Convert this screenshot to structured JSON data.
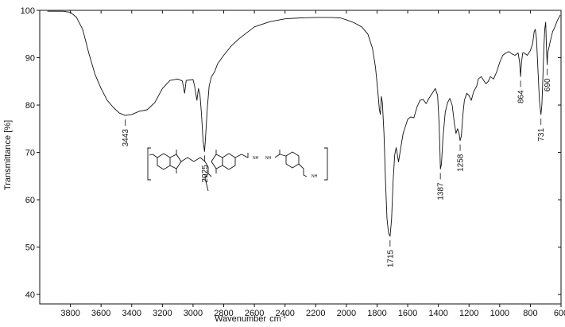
{
  "chart_data": {
    "type": "line",
    "xlabel": "Wavenumber",
    "xlabel_unit": "cm",
    "xlabel_unit_exp": "-1",
    "ylabel": "Transmittance [%]",
    "xlim": [
      4000,
      600
    ],
    "ylim": [
      38,
      100
    ],
    "x_ticks": [
      3800,
      3600,
      3400,
      3200,
      3000,
      2800,
      2600,
      2400,
      2200,
      2000,
      1800,
      1600,
      1400,
      1200,
      1000,
      800,
      600
    ],
    "y_ticks": [
      40,
      50,
      60,
      70,
      80,
      90,
      100
    ],
    "grid": false,
    "series": [
      {
        "color": "#111111",
        "points": [
          [
            3950,
            99.8
          ],
          [
            3900,
            99.8
          ],
          [
            3850,
            99.8
          ],
          [
            3800,
            99.6
          ],
          [
            3760,
            98.5
          ],
          [
            3720,
            96
          ],
          [
            3680,
            91
          ],
          [
            3640,
            86.5
          ],
          [
            3600,
            83.5
          ],
          [
            3560,
            81
          ],
          [
            3520,
            79.5
          ],
          [
            3480,
            78.3
          ],
          [
            3443,
            77.8
          ],
          [
            3400,
            78.0
          ],
          [
            3350,
            78.7
          ],
          [
            3300,
            79
          ],
          [
            3250,
            80.5
          ],
          [
            3200,
            83.5
          ],
          [
            3150,
            85.2
          ],
          [
            3100,
            85.5
          ],
          [
            3070,
            85.1
          ],
          [
            3055,
            82.5
          ],
          [
            3045,
            85.2
          ],
          [
            3020,
            85.3
          ],
          [
            3000,
            85.4
          ],
          [
            2990,
            84.0
          ],
          [
            2975,
            81.0
          ],
          [
            2965,
            83.5
          ],
          [
            2955,
            82.2
          ],
          [
            2945,
            78.0
          ],
          [
            2935,
            72.5
          ],
          [
            2925,
            70.2
          ],
          [
            2918,
            73.5
          ],
          [
            2908,
            79.0
          ],
          [
            2895,
            84.0
          ],
          [
            2880,
            86.0
          ],
          [
            2860,
            87.0
          ],
          [
            2840,
            88.7
          ],
          [
            2800,
            90.5
          ],
          [
            2750,
            92.5
          ],
          [
            2700,
            94
          ],
          [
            2600,
            96.5
          ],
          [
            2500,
            97.6
          ],
          [
            2400,
            98.2
          ],
          [
            2300,
            98.4
          ],
          [
            2200,
            98.5
          ],
          [
            2100,
            98.5
          ],
          [
            2040,
            98.4
          ],
          [
            2000,
            98.0
          ],
          [
            1950,
            97.4
          ],
          [
            1900,
            96.5
          ],
          [
            1860,
            95.0
          ],
          [
            1830,
            92.0
          ],
          [
            1810,
            88.0
          ],
          [
            1795,
            83.0
          ],
          [
            1785,
            79.0
          ],
          [
            1778,
            78.0
          ],
          [
            1772,
            81.8
          ],
          [
            1765,
            80.5
          ],
          [
            1755,
            74.0
          ],
          [
            1745,
            64.0
          ],
          [
            1735,
            56.0
          ],
          [
            1725,
            53.0
          ],
          [
            1715,
            52.3
          ],
          [
            1705,
            56.0
          ],
          [
            1695,
            64.0
          ],
          [
            1685,
            69.5
          ],
          [
            1675,
            71.0
          ],
          [
            1660,
            68.0
          ],
          [
            1650,
            70.0
          ],
          [
            1630,
            74.0
          ],
          [
            1600,
            77.0
          ],
          [
            1580,
            77.5
          ],
          [
            1560,
            77.3
          ],
          [
            1540,
            79.5
          ],
          [
            1520,
            81.0
          ],
          [
            1500,
            81.2
          ],
          [
            1480,
            80.3
          ],
          [
            1460,
            81.5
          ],
          [
            1440,
            82.5
          ],
          [
            1420,
            83.5
          ],
          [
            1405,
            82.0
          ],
          [
            1395,
            76.0
          ],
          [
            1390,
            70.5
          ],
          [
            1387,
            66.5
          ],
          [
            1380,
            67.5
          ],
          [
            1370,
            73.0
          ],
          [
            1355,
            78.5
          ],
          [
            1340,
            80.5
          ],
          [
            1325,
            81.4
          ],
          [
            1310,
            80.0
          ],
          [
            1295,
            76.0
          ],
          [
            1285,
            74.0
          ],
          [
            1275,
            75.0
          ],
          [
            1265,
            74.0
          ],
          [
            1258,
            72.5
          ],
          [
            1250,
            73.5
          ],
          [
            1240,
            78.0
          ],
          [
            1230,
            81.0
          ],
          [
            1215,
            82.5
          ],
          [
            1200,
            82.0
          ],
          [
            1185,
            81.0
          ],
          [
            1170,
            82.8
          ],
          [
            1150,
            84.0
          ],
          [
            1140,
            85.5
          ],
          [
            1120,
            86.0
          ],
          [
            1105,
            85.2
          ],
          [
            1090,
            84.5
          ],
          [
            1075,
            85.0
          ],
          [
            1060,
            86.0
          ],
          [
            1040,
            85.5
          ],
          [
            1020,
            87.0
          ],
          [
            1000,
            89.0
          ],
          [
            980,
            90.5
          ],
          [
            960,
            91.0
          ],
          [
            940,
            91.3
          ],
          [
            920,
            90.8
          ],
          [
            900,
            90.5
          ],
          [
            880,
            91.0
          ],
          [
            870,
            89.0
          ],
          [
            864,
            86.0
          ],
          [
            858,
            89.0
          ],
          [
            850,
            91.0
          ],
          [
            840,
            91.0
          ],
          [
            820,
            90.5
          ],
          [
            800,
            91.5
          ],
          [
            785,
            93.0
          ],
          [
            775,
            95.5
          ],
          [
            768,
            96.0
          ],
          [
            760,
            94.0
          ],
          [
            750,
            87.0
          ],
          [
            741,
            81.0
          ],
          [
            735,
            79.0
          ],
          [
            731,
            78.0
          ],
          [
            725,
            80.0
          ],
          [
            718,
            86.0
          ],
          [
            712,
            92.0
          ],
          [
            706,
            96.0
          ],
          [
            700,
            97.5
          ],
          [
            696,
            93.0
          ],
          [
            692,
            90.0
          ],
          [
            690,
            88.5
          ],
          [
            687,
            91.0
          ],
          [
            680,
            92.0
          ],
          [
            670,
            93.5
          ],
          [
            655,
            95.5
          ],
          [
            640,
            96.5
          ],
          [
            625,
            97.8
          ],
          [
            612,
            98.6
          ],
          [
            605,
            99.0
          ]
        ]
      }
    ],
    "peak_labels": [
      {
        "x": 3443,
        "y": 77.8,
        "text": "3443"
      },
      {
        "x": 2925,
        "y": 70.2,
        "text": "2925"
      },
      {
        "x": 1715,
        "y": 52.3,
        "text": "1715"
      },
      {
        "x": 1387,
        "y": 66.5,
        "text": "1387"
      },
      {
        "x": 1258,
        "y": 72.5,
        "text": "1258"
      },
      {
        "x": 864,
        "y": 86.0,
        "text": "864"
      },
      {
        "x": 731,
        "y": 78.0,
        "text": "731"
      },
      {
        "x": 690,
        "y": 88.5,
        "text": "690"
      }
    ]
  },
  "structure_labels": {
    "amide_nh": "NH",
    "hydrazide_nh1": "NH",
    "hydrazide_nh2": "NH"
  }
}
